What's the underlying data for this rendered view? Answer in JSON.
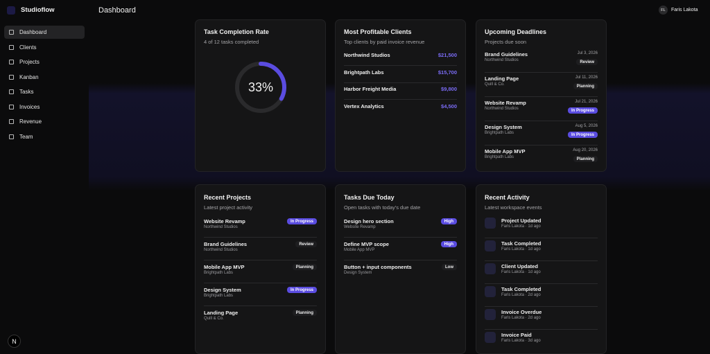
{
  "app": {
    "brand": "Studioflow",
    "page_title": "Dashboard",
    "user": {
      "initials": "FL",
      "name": "Faris Lakota"
    },
    "footer_badge": "N",
    "nav": [
      "Dashboard",
      "Clients",
      "Projects",
      "Kanban",
      "Tasks",
      "Invoices",
      "Revenue",
      "Team"
    ]
  },
  "cards": {
    "completion": {
      "title": "Task Completion Rate",
      "subtitle": "4 of 12 tasks completed",
      "value": 33,
      "label": "33%"
    },
    "clients": {
      "title": "Most Profitable Clients",
      "subtitle": "Top clients by paid invoice revenue",
      "rows": [
        {
          "name": "Northwind Studios",
          "amount": "$21,500"
        },
        {
          "name": "Brightpath Labs",
          "amount": "$15,700"
        },
        {
          "name": "Harbor Freight Media",
          "amount": "$9,800"
        },
        {
          "name": "Vertex Analytics",
          "amount": "$4,500"
        }
      ]
    },
    "deadlines": {
      "title": "Upcoming Deadlines",
      "subtitle": "Projects due soon",
      "items": [
        {
          "name": "Brand Guidelines",
          "client": "Northwind Studios",
          "date": "Jul 3, 2026",
          "status": "Review"
        },
        {
          "name": "Landing Page",
          "client": "Quill & Co.",
          "date": "Jul 11, 2026",
          "status": "Planning"
        },
        {
          "name": "Website Revamp",
          "client": "Northwind Studios",
          "date": "Jul 21, 2026",
          "status": "In Progress"
        },
        {
          "name": "Design System",
          "client": "Brightpath Labs",
          "date": "Aug 5, 2026",
          "status": "In Progress"
        },
        {
          "name": "Mobile App MVP",
          "client": "Brightpath Labs",
          "date": "Aug 20, 2026",
          "status": "Planning"
        }
      ]
    },
    "recent_projects": {
      "title": "Recent Projects",
      "subtitle": "Latest project activity",
      "items": [
        {
          "name": "Website Revamp",
          "client": "Northwind Studios",
          "status": "In Progress"
        },
        {
          "name": "Brand Guidelines",
          "client": "Northwind Studios",
          "status": "Review"
        },
        {
          "name": "Mobile App MVP",
          "client": "Brightpath Labs",
          "status": "Planning"
        },
        {
          "name": "Design System",
          "client": "Brightpath Labs",
          "status": "In Progress"
        },
        {
          "name": "Landing Page",
          "client": "Quill & Co.",
          "status": "Planning"
        }
      ]
    },
    "tasks_today": {
      "title": "Tasks Due Today",
      "subtitle": "Open tasks with today's due date",
      "items": [
        {
          "name": "Design hero section",
          "project": "Website Revamp",
          "priority": "High"
        },
        {
          "name": "Define MVP scope",
          "project": "Mobile App MVP",
          "priority": "High"
        },
        {
          "name": "Button + input components",
          "project": "Design System",
          "priority": "Low"
        }
      ]
    },
    "activity": {
      "title": "Recent Activity",
      "subtitle": "Latest workspace events",
      "items": [
        {
          "title": "Project Updated",
          "meta": "Faris Lakota · 1d ago"
        },
        {
          "title": "Task Completed",
          "meta": "Faris Lakota · 1d ago"
        },
        {
          "title": "Client Updated",
          "meta": "Faris Lakota · 1d ago"
        },
        {
          "title": "Task Completed",
          "meta": "Faris Lakota · 2d ago"
        },
        {
          "title": "Invoice Overdue",
          "meta": "Faris Lakota · 2d ago"
        },
        {
          "title": "Invoice Paid",
          "meta": "Faris Lakota · 3d ago"
        }
      ]
    }
  }
}
